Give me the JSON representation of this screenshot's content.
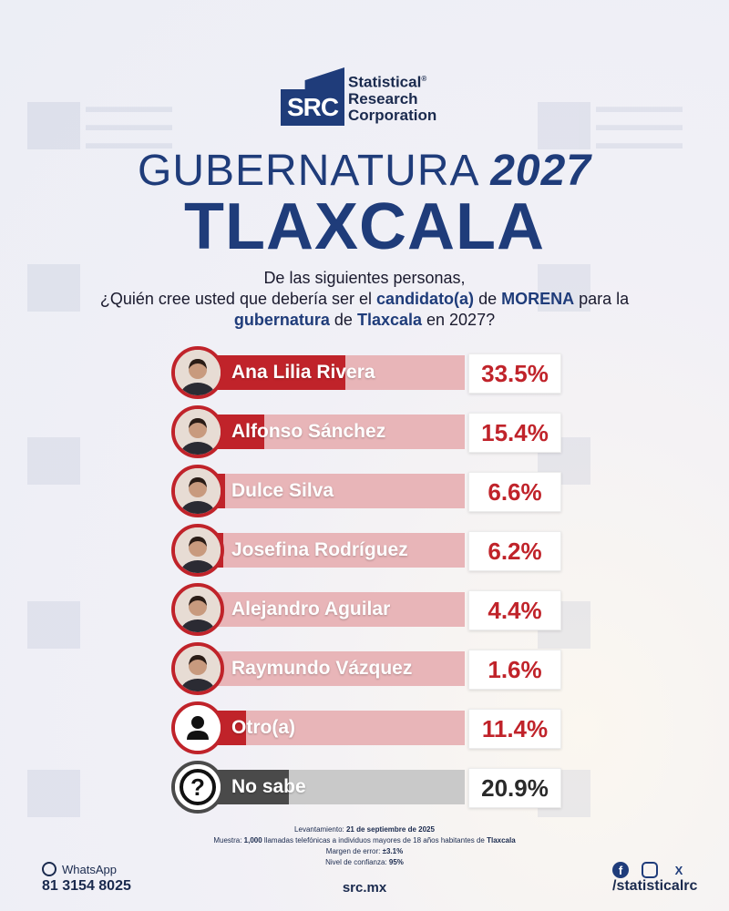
{
  "brand": {
    "logo_mark": "SRC",
    "name_line1": "Statistical",
    "name_line2": "Research",
    "name_line3": "Corporation",
    "registered": "®",
    "accent_color": "#1f3c7a",
    "bar_color": "#c0232a"
  },
  "header": {
    "title_light": "GUBERNATURA",
    "title_year": "2027",
    "subtitle": "TLAXCALA"
  },
  "question": {
    "line1": "De las siguientes personas,",
    "l2_pre": "¿Quién cree usted que debería ser el ",
    "l2_bold1": "candidato(a)",
    "l2_mid": " de ",
    "l2_bold2": "MORENA",
    "l2_post": " para la",
    "l3_bold1": "gubernatura",
    "l3_mid": " de ",
    "l3_bold2": "Tlaxcala",
    "l3_post": " en 2027?"
  },
  "chart_data": {
    "type": "bar",
    "orientation": "horizontal",
    "categories": [
      "Ana Lilia Rivera",
      "Alfonso Sánchez",
      "Dulce Silva",
      "Josefina Rodríguez",
      "Alejandro Aguilar",
      "Raymundo Vázquez",
      "Otro(a)",
      "No sabe"
    ],
    "values": [
      33.5,
      15.4,
      6.6,
      6.2,
      4.4,
      1.6,
      11.4,
      20.9
    ],
    "labels": [
      "33.5%",
      "15.4%",
      "6.6%",
      "6.2%",
      "4.4%",
      "1.6%",
      "11.4%",
      "20.9%"
    ],
    "unit": "%",
    "xlim": [
      0,
      60
    ],
    "icons": [
      "candidate-photo",
      "candidate-photo",
      "candidate-photo",
      "candidate-photo",
      "candidate-photo",
      "candidate-photo",
      "person-icon",
      "question-icon"
    ],
    "styles": [
      "red",
      "red",
      "red",
      "red",
      "red",
      "red",
      "red",
      "gray"
    ]
  },
  "footnotes": {
    "lev_label": "Levantamiento: ",
    "lev_value": "21 de septiembre de 2025",
    "muestra_label": "Muestra: ",
    "muestra_n": "1,000",
    "muestra_text": " llamadas telefónicas a individuos mayores de 18 años habitantes de ",
    "muestra_place": "Tlaxcala",
    "margen_label": "Margen de error: ",
    "margen_value": "±3.1%",
    "nivel_label": "Nivel de confianza: ",
    "nivel_value": "95%"
  },
  "footer": {
    "whatsapp_label": "WhatsApp",
    "phone": "81 3154 8025",
    "website": "src.mx",
    "social_handle": "/statisticalrc",
    "icon_fb": "f",
    "icon_x": "X"
  }
}
